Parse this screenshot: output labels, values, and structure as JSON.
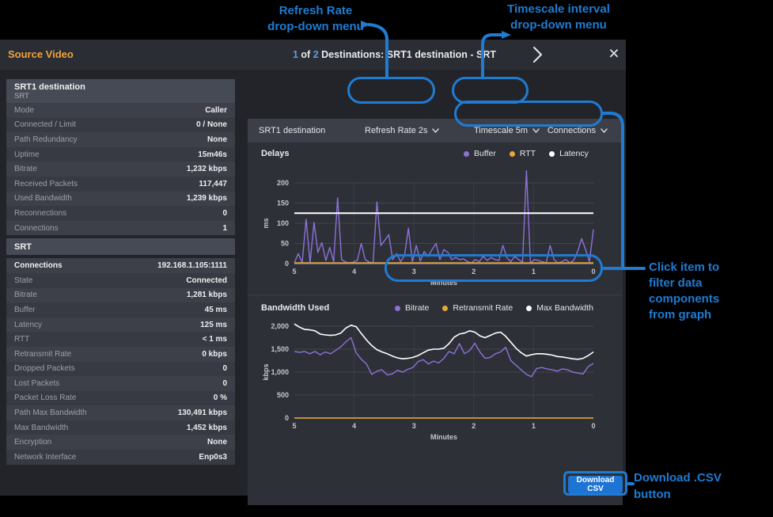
{
  "colors": {
    "accent_blue": "#1e7cd3",
    "purple": "#8d71d8",
    "amber": "#e9a63a",
    "white_series": "#ffffff",
    "button_blue": "#1d74d4",
    "source_orange": "#f0a43c",
    "title_number_blue": "#5c9fd8"
  },
  "annotations": {
    "refresh_note": {
      "line1": "Refresh Rate",
      "line2": "drop-down menu"
    },
    "timescale_note": {
      "line1": "Timescale interval",
      "line2": "drop-down menu"
    },
    "filter_note": {
      "line1": "Click item to",
      "line2": "filter data",
      "line3": "components",
      "line4": "from graph"
    },
    "download_note": {
      "line1": "Download .CSV",
      "line2": "button"
    }
  },
  "header": {
    "source_label": "Source Video",
    "title_parts": {
      "num1": "1",
      "of": " of ",
      "num2": "2",
      "rest": " Destinations: SRT1 destination - SRT"
    },
    "close_glyph": "×"
  },
  "sidebar": {
    "groups": [
      {
        "rows": [
          {
            "style": "header2",
            "label": "SRT1 destination",
            "sublabel": "SRT"
          },
          {
            "label": "Mode",
            "value": "Caller"
          },
          {
            "label": "Connected / Limit",
            "value": "0 / None"
          },
          {
            "label": "Path Redundancy",
            "value": "None"
          },
          {
            "label": "Uptime",
            "value": "15m46s"
          },
          {
            "label": "Bitrate",
            "value": "1,232 kbps"
          },
          {
            "label": "Received Packets",
            "value": "117,447"
          },
          {
            "label": "Used Bandwidth",
            "value": "1,239 kbps"
          },
          {
            "label": "Reconnections",
            "value": "0"
          },
          {
            "label": "Connections",
            "value": "1"
          }
        ]
      },
      {
        "rows": [
          {
            "style": "header1",
            "label": "SRT"
          }
        ]
      },
      {
        "rows": [
          {
            "style": "bold",
            "label": "Connections",
            "value": "192.168.1.105:1111"
          },
          {
            "label": "State",
            "value": "Connected"
          },
          {
            "label": "Bitrate",
            "value": "1,281 kbps"
          },
          {
            "label": "Buffer",
            "value": "45 ms"
          },
          {
            "label": "Latency",
            "value": "125 ms"
          },
          {
            "label": "RTT",
            "value": "< 1 ms"
          },
          {
            "label": "Retransmit Rate",
            "value": "0 kbps"
          },
          {
            "label": "Dropped Packets",
            "value": "0"
          },
          {
            "label": "Lost Packets",
            "value": "0"
          },
          {
            "label": "Packet Loss Rate",
            "value": "0 %"
          },
          {
            "label": "Path Max Bandwidth",
            "value": "130,491 kbps"
          },
          {
            "label": "Max Bandwidth",
            "value": "1,452 kbps"
          },
          {
            "label": "Encryption",
            "value": "None"
          },
          {
            "label": "Network Interface",
            "value": "Enp0s3"
          }
        ]
      }
    ]
  },
  "toolbar": {
    "title": "SRT1 destination",
    "refresh_dropdown": "Refresh Rate 2s",
    "timescale_dropdown": "Timescale 5m",
    "connections_dropdown": "Connections"
  },
  "footer": {
    "download_button": "Download CSV"
  },
  "chart_data": [
    {
      "type": "line",
      "title": "Delays",
      "xlabel": "Minutes",
      "ylabel": "ms",
      "ylim": [
        0,
        200
      ],
      "yticks": [
        0,
        50,
        100,
        150,
        200
      ],
      "ytick_labels": [
        "0",
        "50",
        "100",
        "150",
        "200"
      ],
      "xticks": [
        5,
        4,
        3,
        2,
        1,
        0
      ],
      "xtick_labels": [
        "5",
        "4",
        "3",
        "2",
        "1",
        "0"
      ],
      "x_range": [
        5,
        0
      ],
      "grid": true,
      "legend_position": "top-right",
      "series": [
        {
          "name": "Buffer",
          "color": "#8d71d8",
          "values": [
            2,
            25,
            3,
            110,
            2,
            102,
            28,
            52,
            8,
            40,
            5,
            163,
            10,
            4,
            2,
            4,
            8,
            50,
            10,
            4,
            2,
            153,
            45,
            58,
            72,
            10,
            25,
            5,
            20,
            88,
            5,
            45,
            6,
            30,
            18,
            35,
            50,
            10,
            35,
            28,
            10,
            15,
            10,
            12,
            5,
            2,
            10,
            5,
            18,
            8,
            15,
            10,
            8,
            45,
            15,
            5,
            18,
            10,
            4,
            230,
            2,
            10,
            8,
            5,
            2,
            45,
            10,
            2,
            5,
            10,
            2,
            8,
            30,
            62,
            35,
            5,
            85
          ]
        },
        {
          "name": "RTT",
          "color": "#e9a63a",
          "values": [
            2,
            2
          ]
        },
        {
          "name": "Latency",
          "color": "#ffffff",
          "values": [
            125,
            125
          ]
        }
      ]
    },
    {
      "type": "line",
      "title": "Bandwidth Used",
      "xlabel": "Minutes",
      "ylabel": "kbps",
      "ylim": [
        0,
        2000
      ],
      "yticks": [
        0,
        500,
        1000,
        1500,
        2000
      ],
      "ytick_labels": [
        "0",
        "500",
        "1,000",
        "1,500",
        "2,000"
      ],
      "xticks": [
        5,
        4,
        3,
        2,
        1,
        0
      ],
      "xtick_labels": [
        "5",
        "4",
        "3",
        "2",
        "1",
        "0"
      ],
      "x_range": [
        5,
        0
      ],
      "grid": true,
      "legend_position": "top-right",
      "series": [
        {
          "name": "Bitrate",
          "color": "#8d71d8",
          "values": [
            1450,
            1430,
            1450,
            1400,
            1450,
            1380,
            1440,
            1400,
            1470,
            1550,
            1660,
            1750,
            1420,
            1280,
            1180,
            950,
            1020,
            1050,
            940,
            960,
            1040,
            1000,
            1060,
            1100,
            1230,
            1270,
            1180,
            1240,
            1200,
            1300,
            1450,
            1400,
            1620,
            1400,
            1470,
            1630,
            1440,
            1300,
            1320,
            1400,
            1440,
            1540,
            1250,
            1150,
            1050,
            950,
            900,
            1080,
            1100,
            1070,
            1050,
            1020,
            1070,
            1050,
            1000,
            980,
            960,
            1120,
            1190
          ]
        },
        {
          "name": "Retransmit Rate",
          "color": "#e9a63a",
          "values": [
            0,
            0
          ]
        },
        {
          "name": "Max Bandwidth",
          "color": "#ffffff",
          "values": [
            2050,
            1980,
            1930,
            1920,
            1900,
            1830,
            1810,
            1800,
            1810,
            1850,
            1960,
            2020,
            1990,
            1840,
            1700,
            1580,
            1490,
            1440,
            1400,
            1350,
            1310,
            1290,
            1300,
            1320,
            1360,
            1420,
            1480,
            1500,
            1500,
            1520,
            1620,
            1760,
            1830,
            1850,
            1900,
            1870,
            1790,
            1750,
            1800,
            1850,
            1870,
            1780,
            1650,
            1520,
            1420,
            1350,
            1380,
            1400,
            1400,
            1390,
            1370,
            1340,
            1330,
            1310,
            1290,
            1280,
            1300,
            1360,
            1440
          ]
        }
      ]
    }
  ]
}
